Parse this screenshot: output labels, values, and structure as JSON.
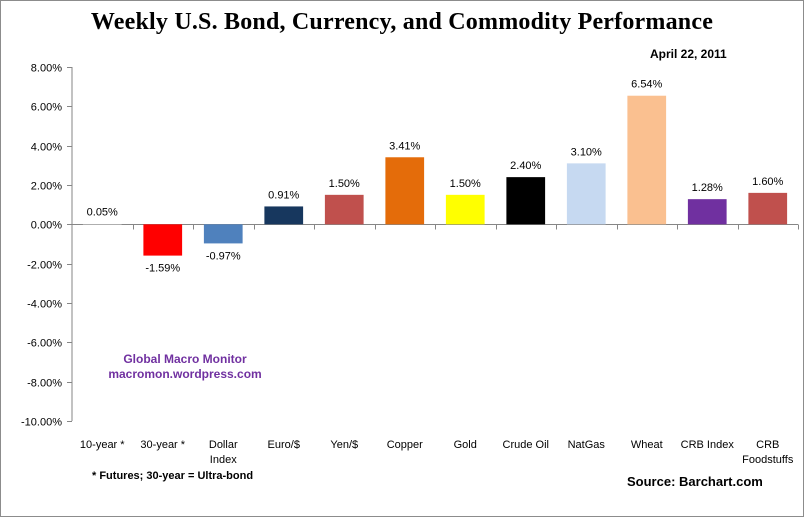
{
  "header": {
    "title": "Weekly U.S. Bond, Currency, and Commodity Performance",
    "date": "April 22, 2011"
  },
  "annotations": {
    "watermark_line1": "Global Macro Monitor",
    "watermark_line2": "macromon.wordpress.com",
    "footnote": "* Futures; 30-year = Ultra-bond",
    "source": "Source:  Barchart.com"
  },
  "chart_data": {
    "type": "bar",
    "title": "Weekly U.S. Bond, Currency, and Commodity Performance",
    "subtitle": "April 22, 2011",
    "xlabel": "",
    "ylabel": "",
    "ylim": [
      -10,
      8
    ],
    "yticks": [
      8,
      6,
      4,
      2,
      0,
      -2,
      -4,
      -6,
      -8,
      -10
    ],
    "ytick_labels": [
      "8.00%",
      "6.00%",
      "4.00%",
      "2.00%",
      "0.00%",
      "-2.00%",
      "-4.00%",
      "-6.00%",
      "-8.00%",
      "-10.00%"
    ],
    "grid": false,
    "legend": "none",
    "categories": [
      [
        "10-year *"
      ],
      [
        "30-year *"
      ],
      [
        "Dollar",
        "Index"
      ],
      [
        "Euro/$"
      ],
      [
        "Yen/$"
      ],
      [
        "Copper"
      ],
      [
        "Gold"
      ],
      [
        "Crude Oil"
      ],
      [
        "NatGas"
      ],
      [
        "Wheat"
      ],
      [
        "CRB Index"
      ],
      [
        "CRB",
        "Foodstuffs"
      ]
    ],
    "values": [
      0.05,
      -1.59,
      -0.97,
      0.91,
      1.5,
      3.41,
      1.5,
      2.4,
      3.1,
      6.54,
      1.28,
      1.6
    ],
    "data_labels": [
      "0.05%",
      "-1.59%",
      "-0.97%",
      "0.91%",
      "1.50%",
      "3.41%",
      "1.50%",
      "2.40%",
      "3.10%",
      "6.54%",
      "1.28%",
      "1.60%"
    ],
    "colors": [
      "#ffffff",
      "#ff0000",
      "#4f81bd",
      "#17375e",
      "#c0504d",
      "#e46c0a",
      "#ffff00",
      "#000000",
      "#c6d9f1",
      "#fac090",
      "#7030a0",
      "#c0504d"
    ],
    "axis_color": "#868686"
  }
}
